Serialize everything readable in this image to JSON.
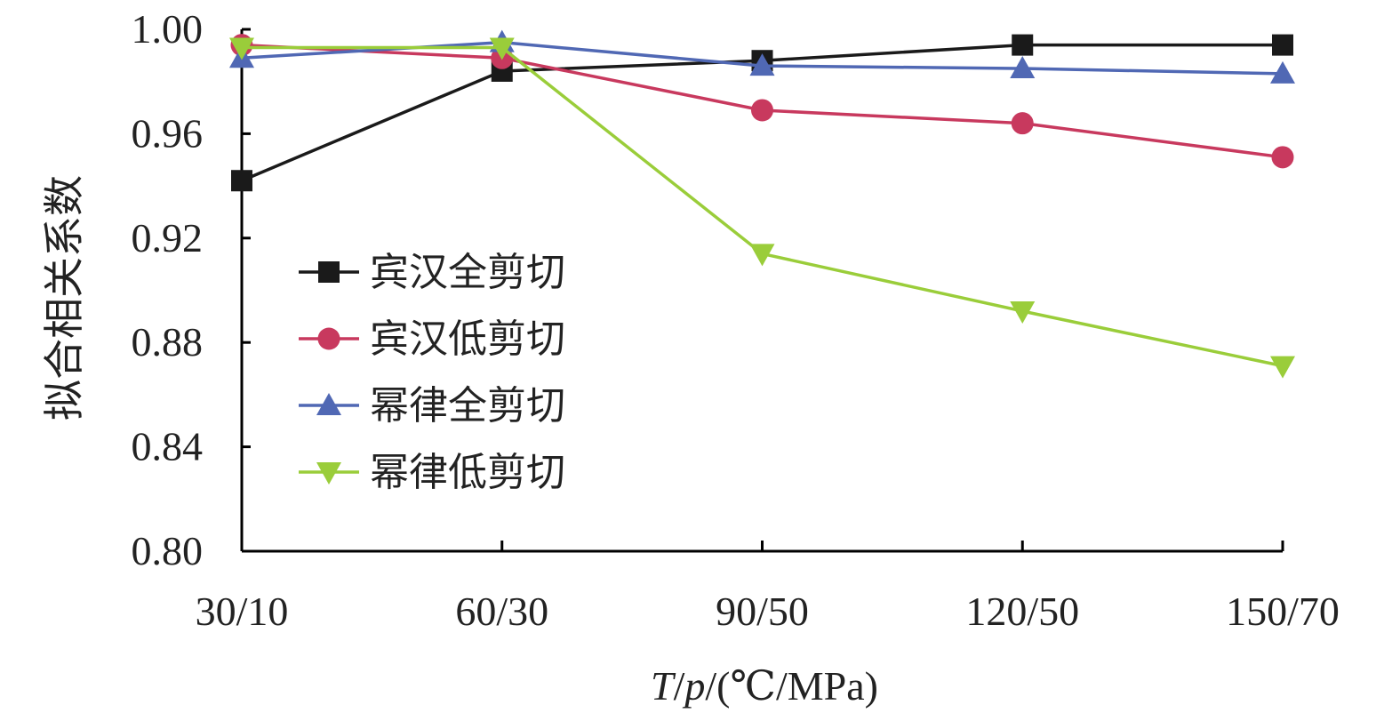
{
  "chart_data": {
    "type": "line",
    "title": "",
    "ylabel": "拟合相关系数",
    "xlabel": {
      "var1": "T",
      "sep1": "/",
      "var2": "p",
      "unit": "/(℃/MPa)"
    },
    "categories": [
      "30/10",
      "60/30",
      "90/50",
      "120/50",
      "150/70"
    ],
    "ylim": [
      0.8,
      1.0
    ],
    "yticks": [
      0.8,
      0.84,
      0.88,
      0.92,
      0.96,
      1.0
    ],
    "ytick_labels": [
      "0.80",
      "0.84",
      "0.88",
      "0.92",
      "0.96",
      "1.00"
    ],
    "grid": false,
    "legend_position": "center-left",
    "series": [
      {
        "name": "宾汉全剪切",
        "marker": "square",
        "color": "#1a1a1a",
        "values": [
          0.942,
          0.984,
          0.988,
          0.994,
          0.994
        ]
      },
      {
        "name": "宾汉低剪切",
        "marker": "circle",
        "color": "#c8395e",
        "values": [
          0.994,
          0.989,
          0.969,
          0.964,
          0.951
        ]
      },
      {
        "name": "幂律全剪切",
        "marker": "triangle-up",
        "color": "#5068b4",
        "values": [
          0.989,
          0.995,
          0.986,
          0.985,
          0.983
        ]
      },
      {
        "name": "幂律低剪切",
        "marker": "triangle-down",
        "color": "#9acd3a",
        "values": [
          0.993,
          0.993,
          0.914,
          0.892,
          0.871
        ]
      }
    ]
  }
}
